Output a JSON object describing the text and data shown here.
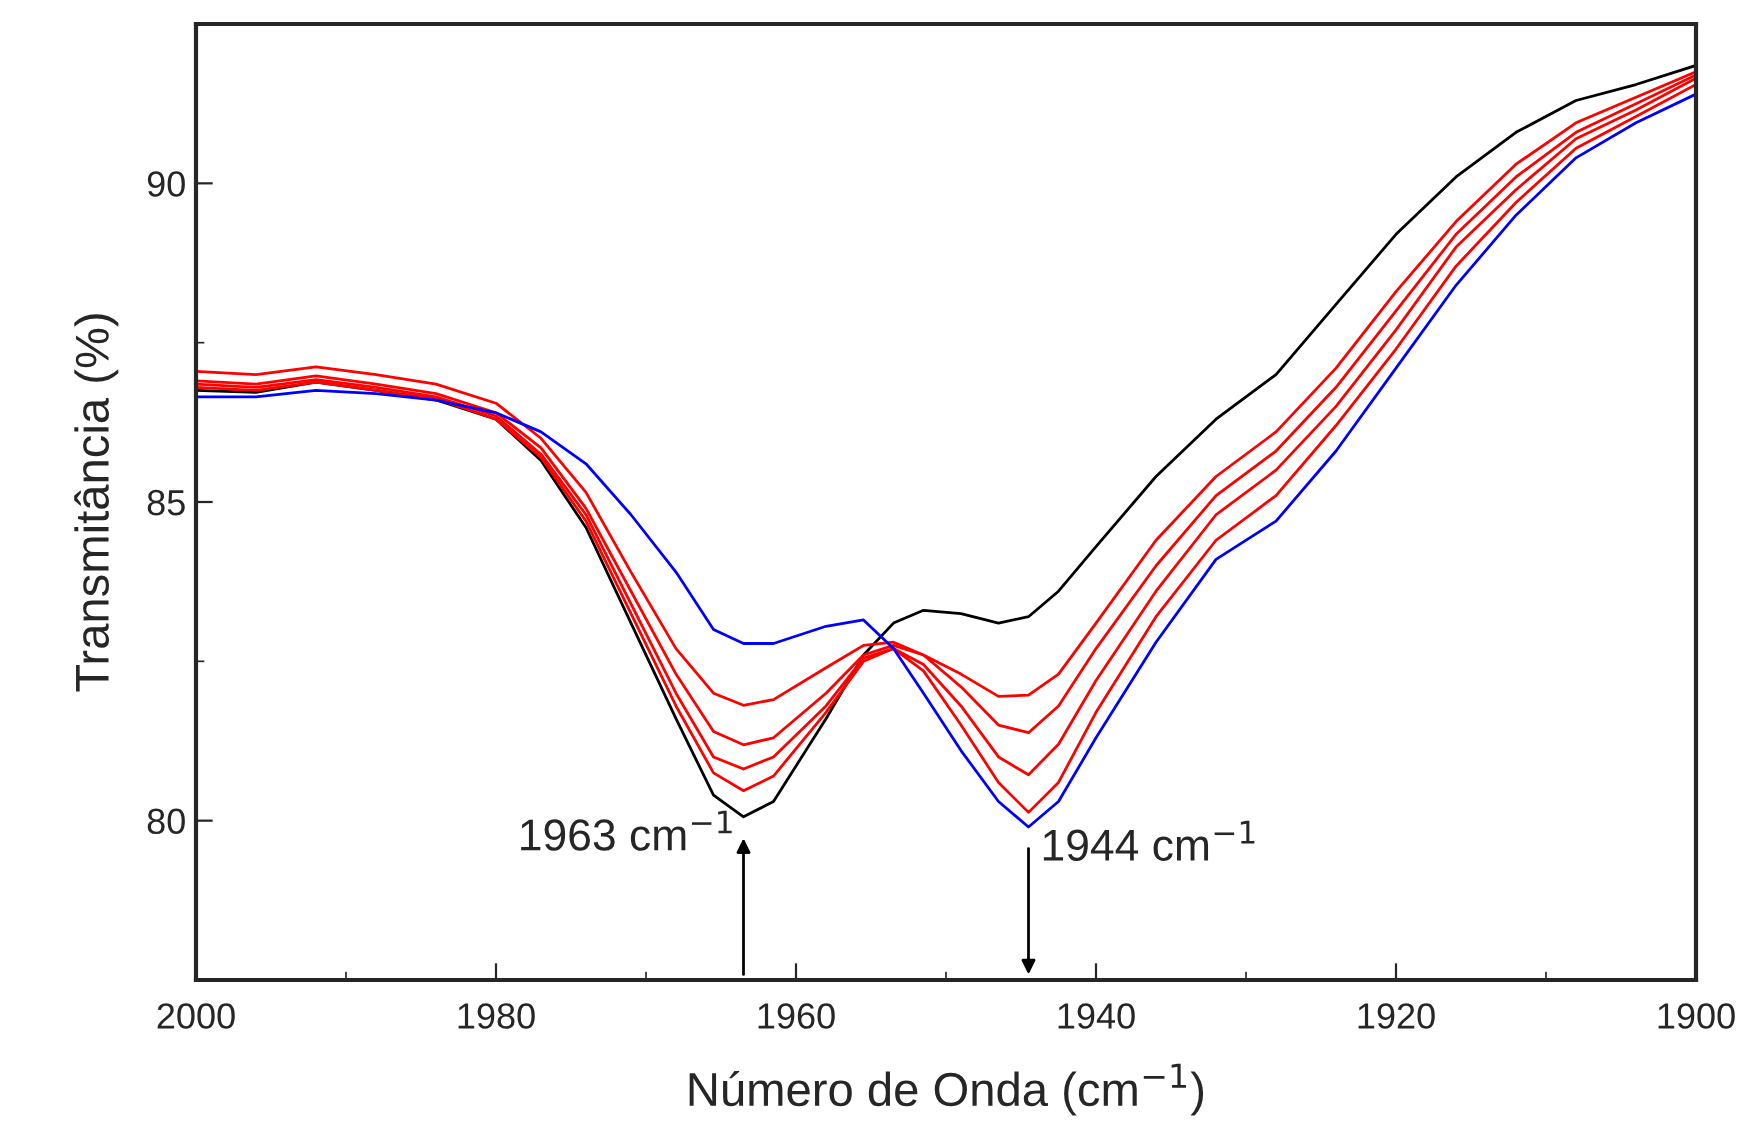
{
  "chart_data": {
    "type": "line",
    "xlabel": "Número de Onda (cm$^{−1}$)",
    "ylabel": "Transmitância (%)",
    "x": [
      2000,
      1996,
      1992,
      1988,
      1984,
      1980,
      1977,
      1974,
      1971,
      1968,
      1965.5,
      1963.5,
      1961.5,
      1958,
      1955.5,
      1953.5,
      1951.5,
      1949,
      1946.5,
      1944.5,
      1942.5,
      1940,
      1936,
      1932,
      1928,
      1924,
      1920,
      1916,
      1912,
      1908,
      1904,
      1900
    ],
    "xlim": [
      2000,
      1900
    ],
    "xticks": [
      2000,
      1980,
      1960,
      1940,
      1920,
      1900
    ],
    "ylim": [
      77.5,
      92.5
    ],
    "yticks": [
      80,
      85,
      90
    ],
    "grid": false,
    "legend": false,
    "series": [
      {
        "color": "#000000",
        "values": [
          86.75,
          86.72,
          86.88,
          86.75,
          86.6,
          86.3,
          85.65,
          84.6,
          83.1,
          81.6,
          80.4,
          80.06,
          80.3,
          81.6,
          82.6,
          83.1,
          83.3,
          83.25,
          83.1,
          83.2,
          83.6,
          84.3,
          85.4,
          86.3,
          87.0,
          88.1,
          89.2,
          90.1,
          90.8,
          91.3,
          91.55,
          91.85
        ]
      },
      {
        "color": "#ff0000",
        "values": [
          86.8,
          86.75,
          86.88,
          86.75,
          86.62,
          86.3,
          85.7,
          84.7,
          83.25,
          81.8,
          80.75,
          80.47,
          80.7,
          81.7,
          82.5,
          82.7,
          82.35,
          81.5,
          80.6,
          80.13,
          80.6,
          81.7,
          83.2,
          84.4,
          85.1,
          86.2,
          87.4,
          88.7,
          89.7,
          90.55,
          91.05,
          91.55
        ]
      },
      {
        "color": "#ff0000",
        "values": [
          86.85,
          86.8,
          86.92,
          86.8,
          86.65,
          86.35,
          85.75,
          84.8,
          83.4,
          82.0,
          81.0,
          80.81,
          81.0,
          81.8,
          82.55,
          82.7,
          82.45,
          81.8,
          81.0,
          80.72,
          81.2,
          82.2,
          83.6,
          84.8,
          85.5,
          86.5,
          87.7,
          89.0,
          89.9,
          90.7,
          91.15,
          91.65
        ]
      },
      {
        "color": "#ff0000",
        "values": [
          86.9,
          86.85,
          86.98,
          86.85,
          86.7,
          86.4,
          85.85,
          84.9,
          83.6,
          82.3,
          81.4,
          81.19,
          81.3,
          82.0,
          82.6,
          82.75,
          82.6,
          82.1,
          81.5,
          81.38,
          81.8,
          82.7,
          84.0,
          85.1,
          85.8,
          86.8,
          88.0,
          89.2,
          90.1,
          90.8,
          91.25,
          91.7
        ]
      },
      {
        "color": "#ff0000",
        "values": [
          87.05,
          87.0,
          87.12,
          87.0,
          86.85,
          86.55,
          86.0,
          85.15,
          83.9,
          82.7,
          82.0,
          81.81,
          81.9,
          82.4,
          82.75,
          82.8,
          82.6,
          82.3,
          81.95,
          81.97,
          82.3,
          83.1,
          84.4,
          85.4,
          86.1,
          87.1,
          88.3,
          89.4,
          90.3,
          90.95,
          91.35,
          91.75
        ]
      },
      {
        "color": "#0000ff",
        "values": [
          86.65,
          86.65,
          86.75,
          86.7,
          86.6,
          86.4,
          86.1,
          85.6,
          84.8,
          83.9,
          83.0,
          82.78,
          82.78,
          83.05,
          83.15,
          82.7,
          82.0,
          81.1,
          80.3,
          79.9,
          80.3,
          81.3,
          82.8,
          84.1,
          84.7,
          85.8,
          87.1,
          88.4,
          89.5,
          90.4,
          90.95,
          91.4
        ]
      }
    ],
    "annotations": [
      {
        "text": "1963 cm$^{−1}$",
        "x": 1963.5,
        "y": 80.06
      },
      {
        "text": "1944 cm$^{−1}$",
        "x": 1944.5,
        "y": 79.9
      }
    ]
  }
}
